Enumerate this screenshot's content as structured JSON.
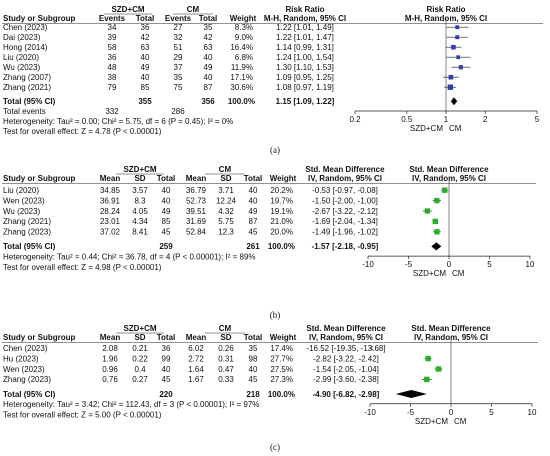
{
  "panels": [
    {
      "id": "a",
      "caption": "(a)",
      "headers": {
        "group1": "SZD+CM",
        "group2": "CM",
        "effect_header": "Risk Ratio",
        "effect_sub": "M-H, Random, 95% CI",
        "plot_header": "Risk Ratio",
        "plot_sub": "M-H, Random, 95% CI",
        "col_study": "Study or Subgroup",
        "col_g1a": "Events",
        "col_g1b": "Total",
        "col_g2a": "Events",
        "col_g2b": "Total",
        "col_weight": "Weight"
      },
      "studies": [
        {
          "name": "Chen (2023)",
          "g1a": "34",
          "g1b": "36",
          "g2a": "27",
          "g2b": "35",
          "weight": "8.3%",
          "ci_text": "1.22 [1.01, 1.49]",
          "est": 1.22,
          "lo": 1.01,
          "hi": 1.49,
          "w": 8.3
        },
        {
          "name": "Dai (2023)",
          "g1a": "39",
          "g1b": "42",
          "g2a": "32",
          "g2b": "42",
          "weight": "9.0%",
          "ci_text": "1.22 [1.01, 1.47]",
          "est": 1.22,
          "lo": 1.01,
          "hi": 1.47,
          "w": 9.0
        },
        {
          "name": "Hong (2014)",
          "g1a": "58",
          "g1b": "63",
          "g2a": "51",
          "g2b": "63",
          "weight": "16.4%",
          "ci_text": "1.14 [0.99, 1.31]",
          "est": 1.14,
          "lo": 0.99,
          "hi": 1.31,
          "w": 16.4
        },
        {
          "name": "Liu (2020)",
          "g1a": "36",
          "g1b": "40",
          "g2a": "29",
          "g2b": "40",
          "weight": "6.8%",
          "ci_text": "1.24 [1.00, 1.54]",
          "est": 1.24,
          "lo": 1.0,
          "hi": 1.54,
          "w": 6.8
        },
        {
          "name": "Wu (2023)",
          "g1a": "48",
          "g1b": "49",
          "g2a": "37",
          "g2b": "49",
          "weight": "11.9%",
          "ci_text": "1.30 [1.10, 1.53]",
          "est": 1.3,
          "lo": 1.1,
          "hi": 1.53,
          "w": 11.9
        },
        {
          "name": "Zhang (2007)",
          "g1a": "38",
          "g1b": "40",
          "g2a": "35",
          "g2b": "40",
          "weight": "17.1%",
          "ci_text": "1.09 [0.95, 1.25]",
          "est": 1.09,
          "lo": 0.95,
          "hi": 1.25,
          "w": 17.1
        },
        {
          "name": "Zhang (2021)",
          "g1a": "79",
          "g1b": "85",
          "g2a": "75",
          "g2b": "87",
          "weight": "30.6%",
          "ci_text": "1.08 [0.97, 1.19]",
          "est": 1.08,
          "lo": 0.97,
          "hi": 1.19,
          "w": 30.6
        }
      ],
      "total": {
        "label": "Total (95% CI)",
        "g1b": "355",
        "g2b": "356",
        "weight": "100.0%",
        "ci_text": "1.15 [1.09, 1.22]",
        "est": 1.15,
        "lo": 1.09,
        "hi": 1.22
      },
      "total_events": {
        "label": "Total events",
        "g1a": "332",
        "g2a": "286"
      },
      "heterogeneity": "Heterogeneity: Tau² = 0.00; Chi² = 5.75, df = 6 (P = 0.45); I² = 0%",
      "overall_effect": "Test for overall effect: Z = 4.78 (P < 0.00001)",
      "axis": {
        "scale": "log",
        "min": 0.2,
        "max": 5,
        "ticks": [
          0.2,
          0.5,
          1,
          2,
          5
        ],
        "tick_labels": [
          "0.2",
          "0.5",
          "1",
          "2",
          "5"
        ],
        "null": 1,
        "favours_left": "SZD+CM",
        "favours_right": "CM"
      },
      "colors": {
        "marker": "#2f3fb0"
      }
    },
    {
      "id": "b",
      "caption": "(b)",
      "headers": {
        "group1": "SZD+CM",
        "group2": "CM",
        "effect_header": "Std. Mean Difference",
        "effect_sub": "IV, Random, 95% CI",
        "plot_header": "Std. Mean Difference",
        "plot_sub": "IV, Random, 95% CI",
        "col_study": "Study or Subgroup",
        "col_g1a": "Mean",
        "col_g1b": "SD",
        "col_g1c": "Total",
        "col_g2a": "Mean",
        "col_g2b": "SD",
        "col_g2c": "Total",
        "col_weight": "Weight"
      },
      "studies": [
        {
          "name": "Liu (2020)",
          "g1a": "34.85",
          "g1b": "3.57",
          "g1c": "40",
          "g2a": "36.79",
          "g2b": "3.71",
          "g2c": "40",
          "weight": "20.2%",
          "ci_text": "-0.53 [-0.97, -0.08]",
          "est": -0.53,
          "lo": -0.97,
          "hi": -0.08,
          "w": 20.2
        },
        {
          "name": "Wen (2023)",
          "g1a": "36.91",
          "g1b": "8.3",
          "g1c": "40",
          "g2a": "52.73",
          "g2b": "12.24",
          "g2c": "40",
          "weight": "19.7%",
          "ci_text": "-1.50 [-2.00, -1.00]",
          "est": -1.5,
          "lo": -2.0,
          "hi": -1.0,
          "w": 19.7
        },
        {
          "name": "Wu (2023)",
          "g1a": "28.24",
          "g1b": "4.05",
          "g1c": "49",
          "g2a": "39.51",
          "g2b": "4.32",
          "g2c": "49",
          "weight": "19.1%",
          "ci_text": "-2.67 [-3.22, -2.12]",
          "est": -2.67,
          "lo": -3.22,
          "hi": -2.12,
          "w": 19.1
        },
        {
          "name": "Zhang (2021)",
          "g1a": "23.01",
          "g1b": "4.34",
          "g1c": "85",
          "g2a": "31.69",
          "g2b": "5.75",
          "g2c": "87",
          "weight": "21.0%",
          "ci_text": "-1.69 [-2.04, -1.34]",
          "est": -1.69,
          "lo": -2.04,
          "hi": -1.34,
          "w": 21.0
        },
        {
          "name": "Zhang (2023)",
          "g1a": "37.02",
          "g1b": "8.41",
          "g1c": "45",
          "g2a": "52.84",
          "g2b": "12.3",
          "g2c": "45",
          "weight": "20.0%",
          "ci_text": "-1.49 [-1.96, -1.02]",
          "est": -1.49,
          "lo": -1.96,
          "hi": -1.02,
          "w": 20.0
        }
      ],
      "total": {
        "label": "Total (95% CI)",
        "g1c": "259",
        "g2c": "261",
        "weight": "100.0%",
        "ci_text": "-1.57 [-2.18, -0.95]",
        "est": -1.57,
        "lo": -2.18,
        "hi": -0.95
      },
      "heterogeneity": "Heterogeneity: Tau² = 0.44; Chi² = 36.78, df = 4 (P < 0.00001); I² = 89%",
      "overall_effect": "Test for overall effect: Z = 4.98 (P < 0.00001)",
      "axis": {
        "scale": "linear",
        "min": -10,
        "max": 10,
        "ticks": [
          -10,
          -5,
          0,
          5,
          10
        ],
        "tick_labels": [
          "-10",
          "-5",
          "0",
          "5",
          "10"
        ],
        "null": 0,
        "favours_left": "SZD+CM",
        "favours_right": "CM"
      },
      "colors": {
        "marker": "#27b027"
      }
    },
    {
      "id": "c",
      "caption": "(c)",
      "headers": {
        "group1": "SZD+CM",
        "group2": "CM",
        "effect_header": "Std. Mean Difference",
        "effect_sub": "IV, Random, 95% CI",
        "plot_header": "Std. Mean Difference",
        "plot_sub": "IV, Random, 95% CI",
        "col_study": "Study or Subgroup",
        "col_g1a": "Mean",
        "col_g1b": "SD",
        "col_g1c": "Total",
        "col_g2a": "Mean",
        "col_g2b": "SD",
        "col_g2c": "Total",
        "col_weight": "Weight"
      },
      "studies": [
        {
          "name": "Chen (2023)",
          "g1a": "2.08",
          "g1b": "0.21",
          "g1c": "36",
          "g2a": "6.02",
          "g2b": "0.26",
          "g2c": "35",
          "weight": "17.4%",
          "ci_text": "-16.52 [-19.35, -13.68]",
          "est": -16.52,
          "lo": -19.35,
          "hi": -13.68,
          "w": 17.4
        },
        {
          "name": "Hu (2023)",
          "g1a": "1.96",
          "g1b": "0.22",
          "g1c": "99",
          "g2a": "2.72",
          "g2b": "0.31",
          "g2c": "98",
          "weight": "27.7%",
          "ci_text": "-2.82 [-3.22, -2.42]",
          "est": -2.82,
          "lo": -3.22,
          "hi": -2.42,
          "w": 27.7
        },
        {
          "name": "Wen (2023)",
          "g1a": "0.96",
          "g1b": "0.4",
          "g1c": "40",
          "g2a": "1.64",
          "g2b": "0.47",
          "g2c": "40",
          "weight": "27.5%",
          "ci_text": "-1.54 [-2.05, -1.04]",
          "est": -1.54,
          "lo": -2.05,
          "hi": -1.04,
          "w": 27.5
        },
        {
          "name": "Zhang (2023)",
          "g1a": "0.76",
          "g1b": "0.27",
          "g1c": "45",
          "g2a": "1.67",
          "g2b": "0.33",
          "g2c": "45",
          "weight": "27.3%",
          "ci_text": "-2.99 [-3.60, -2.38]",
          "est": -2.99,
          "lo": -3.6,
          "hi": -2.38,
          "w": 27.3
        }
      ],
      "total": {
        "label": "Total (95% CI)",
        "g1c": "220",
        "g2c": "218",
        "weight": "100.0%",
        "ci_text": "-4.90 [-6.82, -2.98]",
        "est": -4.9,
        "lo": -6.82,
        "hi": -2.98
      },
      "heterogeneity": "Heterogeneity: Tau² = 3.42; Chi² = 112.43, df = 3 (P < 0.00001); I² = 97%",
      "overall_effect": "Test for overall effect: Z = 5.00 (P < 0.00001)",
      "axis": {
        "scale": "linear",
        "min": -10,
        "max": 10,
        "ticks": [
          -10,
          -5,
          0,
          5,
          10
        ],
        "tick_labels": [
          "-10",
          "-5",
          "0",
          "5",
          "10"
        ],
        "null": 0,
        "favours_left": "SZD+CM",
        "favours_right": "CM"
      },
      "colors": {
        "marker": "#27b027"
      }
    }
  ],
  "chart_data": [
    {
      "type": "forest",
      "measure": "Risk Ratio",
      "method": "M-H, Random, 95% CI",
      "categories": [
        "Chen (2023)",
        "Dai (2023)",
        "Hong (2014)",
        "Liu (2020)",
        "Wu (2023)",
        "Zhang (2007)",
        "Zhang (2021)"
      ],
      "estimate": [
        1.22,
        1.22,
        1.14,
        1.24,
        1.3,
        1.09,
        1.08
      ],
      "ci_low": [
        1.01,
        1.01,
        0.99,
        1.0,
        1.1,
        0.95,
        0.97
      ],
      "ci_high": [
        1.49,
        1.47,
        1.31,
        1.54,
        1.53,
        1.25,
        1.19
      ],
      "weight": [
        8.3,
        9.0,
        16.4,
        6.8,
        11.9,
        17.1,
        30.6
      ],
      "pooled": {
        "estimate": 1.15,
        "ci_low": 1.09,
        "ci_high": 1.22
      },
      "xscale": "log",
      "xlim": [
        0.2,
        5
      ]
    },
    {
      "type": "forest",
      "measure": "Std. Mean Difference",
      "method": "IV, Random, 95% CI",
      "categories": [
        "Liu (2020)",
        "Wen (2023)",
        "Wu (2023)",
        "Zhang (2021)",
        "Zhang (2023)"
      ],
      "estimate": [
        -0.53,
        -1.5,
        -2.67,
        -1.69,
        -1.49
      ],
      "ci_low": [
        -0.97,
        -2.0,
        -3.22,
        -2.04,
        -1.96
      ],
      "ci_high": [
        -0.08,
        -1.0,
        -2.12,
        -1.34,
        -1.02
      ],
      "weight": [
        20.2,
        19.7,
        19.1,
        21.0,
        20.0
      ],
      "pooled": {
        "estimate": -1.57,
        "ci_low": -2.18,
        "ci_high": -0.95
      },
      "xscale": "linear",
      "xlim": [
        -10,
        10
      ]
    },
    {
      "type": "forest",
      "measure": "Std. Mean Difference",
      "method": "IV, Random, 95% CI",
      "categories": [
        "Chen (2023)",
        "Hu (2023)",
        "Wen (2023)",
        "Zhang (2023)"
      ],
      "estimate": [
        -16.52,
        -2.82,
        -1.54,
        -2.99
      ],
      "ci_low": [
        -19.35,
        -3.22,
        -2.05,
        -3.6
      ],
      "ci_high": [
        -13.68,
        -2.42,
        -1.04,
        -2.38
      ],
      "weight": [
        17.4,
        27.7,
        27.5,
        27.3
      ],
      "pooled": {
        "estimate": -4.9,
        "ci_low": -6.82,
        "ci_high": -2.98
      },
      "xscale": "linear",
      "xlim": [
        -10,
        10
      ]
    }
  ]
}
